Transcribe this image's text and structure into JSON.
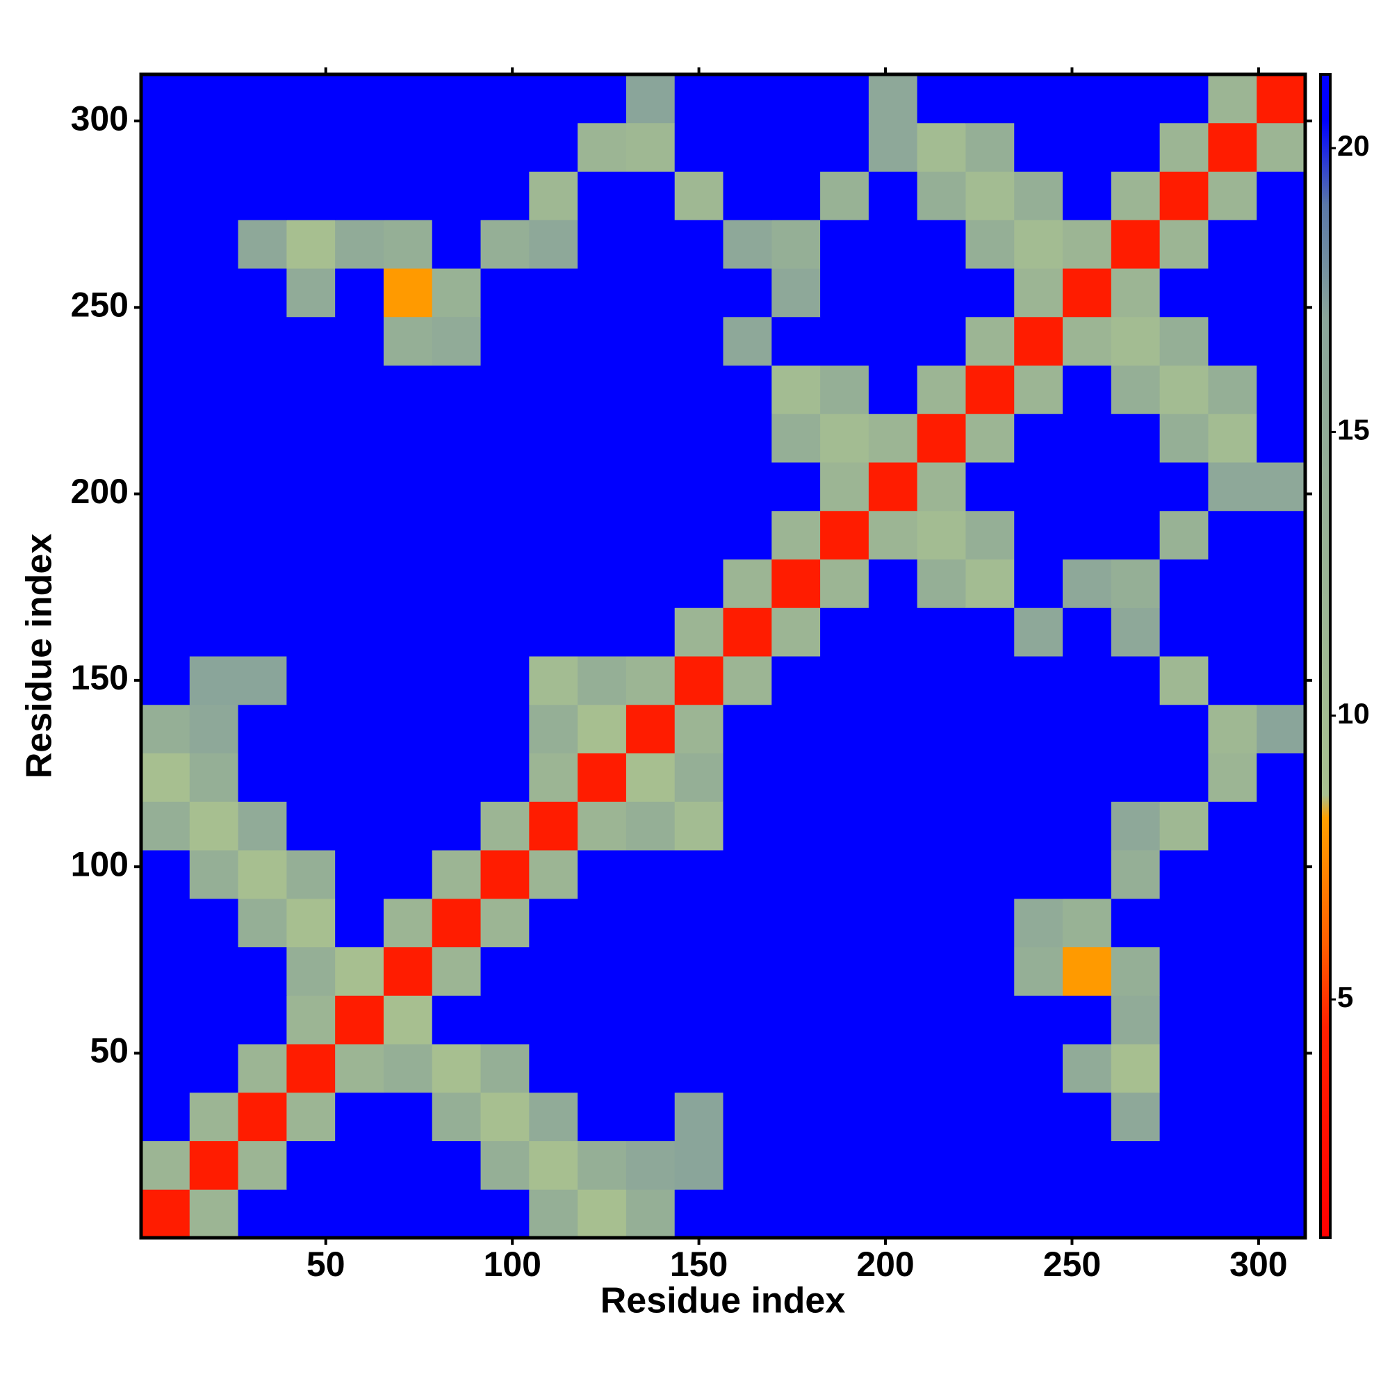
{
  "chart_data": {
    "type": "heatmap",
    "x_label": "Residue index",
    "y_label": "Residue index",
    "xlim": [
      0.5,
      312.5
    ],
    "ylim": [
      0.5,
      312.5
    ],
    "xticks": [
      50,
      100,
      150,
      200,
      250,
      300
    ],
    "yticks": [
      50,
      100,
      150,
      200,
      250,
      300
    ],
    "zlim": [
      0.8,
      21.3
    ],
    "zticks": [
      5,
      10,
      15,
      20
    ],
    "colorscale": [
      [
        0.8,
        "#ff0000"
      ],
      [
        4.5,
        "#ff2000"
      ],
      [
        6,
        "#ff6000"
      ],
      [
        8.2,
        "#ffa000"
      ],
      [
        8.6,
        "#a8c090"
      ],
      [
        17,
        "#8aa59a"
      ],
      [
        19,
        "#5a78a8"
      ],
      [
        20.5,
        "#0000ff"
      ],
      [
        21.3,
        "#0000ff"
      ]
    ],
    "x_edges": [
      0.5,
      13.5,
      26.5,
      39.5,
      52.5,
      65.5,
      78.5,
      91.5,
      104.5,
      117.5,
      130.5,
      143.5,
      156.5,
      169.5,
      182.5,
      195.5,
      208.5,
      221.5,
      234.5,
      247.5,
      260.5,
      273.5,
      286.5,
      299.5,
      312.5
    ],
    "y_edges": [
      0.5,
      13.5,
      26.5,
      39.5,
      52.5,
      65.5,
      78.5,
      91.5,
      104.5,
      117.5,
      130.5,
      143.5,
      156.5,
      169.5,
      182.5,
      195.5,
      208.5,
      221.5,
      234.5,
      247.5,
      260.5,
      273.5,
      286.5,
      299.5,
      312.5
    ],
    "z": [
      [
        4,
        12,
        21,
        21,
        21,
        21,
        21,
        21,
        14,
        9,
        14,
        21,
        21,
        21,
        21,
        21,
        21,
        21,
        21,
        21,
        21,
        21,
        21,
        21
      ],
      [
        12,
        4,
        12,
        21,
        21,
        21,
        21,
        14,
        9,
        14,
        16,
        17,
        21,
        21,
        21,
        21,
        21,
        21,
        21,
        21,
        21,
        21,
        21,
        21
      ],
      [
        21,
        12,
        4,
        12,
        21,
        21,
        14,
        9,
        15,
        21,
        21,
        17,
        21,
        21,
        21,
        21,
        21,
        21,
        21,
        21,
        16,
        21,
        21,
        21
      ],
      [
        21,
        21,
        12,
        4,
        12,
        14,
        9,
        14,
        21,
        21,
        21,
        21,
        21,
        21,
        21,
        21,
        21,
        21,
        21,
        15,
        9,
        21,
        21,
        21
      ],
      [
        21,
        21,
        21,
        12,
        4,
        9,
        21,
        21,
        21,
        21,
        21,
        21,
        21,
        21,
        21,
        21,
        21,
        21,
        21,
        21,
        15,
        21,
        21,
        21
      ],
      [
        21,
        21,
        21,
        14,
        9,
        4,
        12,
        21,
        21,
        21,
        21,
        21,
        21,
        21,
        21,
        21,
        21,
        21,
        14,
        8,
        14,
        21,
        21,
        21
      ],
      [
        21,
        21,
        14,
        9,
        21,
        12,
        4,
        12,
        21,
        21,
        21,
        21,
        21,
        21,
        21,
        21,
        21,
        21,
        15,
        13,
        21,
        21,
        21,
        21
      ],
      [
        21,
        14,
        9,
        14,
        21,
        21,
        12,
        4,
        12,
        21,
        21,
        21,
        21,
        21,
        21,
        21,
        21,
        21,
        21,
        21,
        14,
        21,
        21,
        21
      ],
      [
        14,
        9,
        15,
        21,
        21,
        21,
        21,
        12,
        4,
        12,
        14,
        10,
        21,
        21,
        21,
        21,
        21,
        21,
        21,
        21,
        16,
        11,
        21,
        21
      ],
      [
        9,
        14,
        21,
        21,
        21,
        21,
        21,
        21,
        12,
        4,
        9,
        14,
        21,
        21,
        21,
        21,
        21,
        21,
        21,
        21,
        21,
        21,
        12,
        21
      ],
      [
        14,
        16,
        21,
        21,
        21,
        21,
        21,
        21,
        14,
        9,
        4,
        12,
        21,
        21,
        21,
        21,
        21,
        21,
        21,
        21,
        21,
        21,
        11,
        17
      ],
      [
        21,
        17,
        17,
        21,
        21,
        21,
        21,
        21,
        10,
        14,
        12,
        4,
        12,
        21,
        21,
        21,
        21,
        21,
        21,
        21,
        21,
        11,
        21,
        21
      ],
      [
        21,
        21,
        21,
        21,
        21,
        21,
        21,
        21,
        21,
        21,
        21,
        12,
        4,
        12,
        21,
        21,
        21,
        21,
        16,
        21,
        16,
        21,
        21,
        21
      ],
      [
        21,
        21,
        21,
        21,
        21,
        21,
        21,
        21,
        21,
        21,
        21,
        21,
        12,
        4,
        12,
        21,
        14,
        10,
        21,
        16,
        14,
        21,
        21,
        21
      ],
      [
        21,
        21,
        21,
        21,
        21,
        21,
        21,
        21,
        21,
        21,
        21,
        21,
        21,
        12,
        4,
        12,
        10,
        14,
        21,
        21,
        21,
        13,
        21,
        21
      ],
      [
        21,
        21,
        21,
        21,
        21,
        21,
        21,
        21,
        21,
        21,
        21,
        21,
        21,
        21,
        12,
        4,
        12,
        21,
        21,
        21,
        21,
        21,
        16,
        16
      ],
      [
        21,
        21,
        21,
        21,
        21,
        21,
        21,
        21,
        21,
        21,
        21,
        21,
        21,
        14,
        10,
        12,
        4,
        12,
        21,
        21,
        21,
        14,
        10,
        21
      ],
      [
        21,
        21,
        21,
        21,
        21,
        21,
        21,
        21,
        21,
        21,
        21,
        21,
        21,
        10,
        14,
        21,
        12,
        4,
        12,
        21,
        14,
        10,
        14,
        21
      ],
      [
        21,
        21,
        21,
        21,
        21,
        14,
        15,
        21,
        21,
        21,
        21,
        21,
        16,
        21,
        21,
        21,
        21,
        12,
        4,
        12,
        10,
        14,
        21,
        21
      ],
      [
        21,
        21,
        21,
        15,
        21,
        8,
        13,
        21,
        21,
        21,
        21,
        21,
        21,
        16,
        21,
        21,
        21,
        21,
        12,
        4,
        12,
        21,
        21,
        21
      ],
      [
        21,
        21,
        16,
        9,
        15,
        14,
        21,
        14,
        16,
        21,
        21,
        21,
        16,
        14,
        21,
        21,
        21,
        14,
        10,
        12,
        4,
        12,
        21,
        21
      ],
      [
        21,
        21,
        21,
        21,
        21,
        21,
        21,
        21,
        11,
        21,
        21,
        11,
        21,
        21,
        13,
        21,
        14,
        10,
        14,
        21,
        12,
        4,
        12,
        21
      ],
      [
        21,
        21,
        21,
        21,
        21,
        21,
        21,
        21,
        21,
        12,
        11,
        21,
        21,
        21,
        21,
        16,
        10,
        14,
        21,
        21,
        21,
        12,
        4,
        12
      ],
      [
        21,
        21,
        21,
        21,
        21,
        21,
        21,
        21,
        21,
        21,
        17,
        21,
        21,
        21,
        21,
        16,
        21,
        21,
        21,
        21,
        21,
        21,
        12,
        4
      ]
    ]
  }
}
